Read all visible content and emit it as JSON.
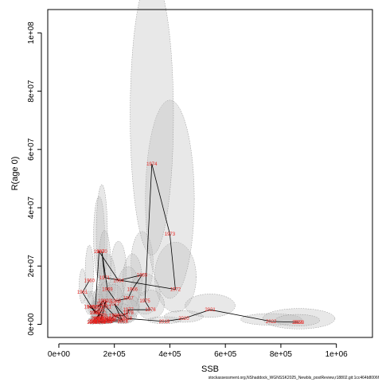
{
  "chart_data": {
    "type": "scatter",
    "xlabel": "SSB",
    "ylabel": "R(age 0)",
    "xlim": [
      -40000,
      1130000
    ],
    "ylim": [
      -4500000,
      108000000
    ],
    "x_ticks": [
      {
        "value": 0,
        "label": "0e+00"
      },
      {
        "value": 200000,
        "label": "2e+05"
      },
      {
        "value": 400000,
        "label": "4e+05"
      },
      {
        "value": 600000,
        "label": "6e+05"
      },
      {
        "value": 800000,
        "label": "8e+05"
      },
      {
        "value": 1000000,
        "label": "1e+06"
      }
    ],
    "y_ticks": [
      {
        "value": 0,
        "label": "0e+00"
      },
      {
        "value": 20000000,
        "label": "2e+07"
      },
      {
        "value": 40000000,
        "label": "4e+07"
      },
      {
        "value": 60000000,
        "label": "6e+07"
      },
      {
        "value": 80000000,
        "label": "8e+07"
      },
      {
        "value": 100000000,
        "label": "1e+08"
      }
    ],
    "grid": false,
    "line_color": "#000000",
    "label_color": "#e8231f",
    "ellipse_fill": "#bdbdbd",
    "points": [
      {
        "year": "1960",
        "x": 110000,
        "y": 15000000,
        "rx": 15000,
        "ry": 9000000
      },
      {
        "year": "1961",
        "x": 85000,
        "y": 11000000,
        "rx": 12000,
        "ry": 6000000
      },
      {
        "year": "1962",
        "x": 130000,
        "y": 4000000,
        "rx": 14000,
        "ry": 3000000
      },
      {
        "year": "1963",
        "x": 145000,
        "y": 25000000,
        "rx": 20000,
        "ry": 14000000
      },
      {
        "year": "1964",
        "x": 215000,
        "y": 15000000,
        "rx": 28000,
        "ry": 10000000
      },
      {
        "year": "1965",
        "x": 300000,
        "y": 17000000,
        "rx": 40000,
        "ry": 11000000
      },
      {
        "year": "1966",
        "x": 265000,
        "y": 12000000,
        "rx": 35000,
        "ry": 9000000
      },
      {
        "year": "1967",
        "x": 250000,
        "y": 9000000,
        "rx": 40000,
        "ry": 8000000
      },
      {
        "year": "1968",
        "x": 205000,
        "y": 8000000,
        "rx": 30000,
        "ry": 6000000
      },
      {
        "year": "1969",
        "x": 175000,
        "y": 12000000,
        "rx": 30000,
        "ry": 9000000
      },
      {
        "year": "1970",
        "x": 155000,
        "y": 25000000,
        "rx": 20000,
        "ry": 17000000
      },
      {
        "year": "1971",
        "x": 165000,
        "y": 16000000,
        "rx": 22000,
        "ry": 12000000
      },
      {
        "year": "1972",
        "x": 420000,
        "y": 12000000,
        "rx": 75000,
        "ry": 12000000
      },
      {
        "year": "1973",
        "x": 400000,
        "y": 31000000,
        "rx": 88000,
        "ry": 34000000
      },
      {
        "year": "1974",
        "x": 335000,
        "y": 55000000,
        "rx": 78000,
        "ry": 48000000
      },
      {
        "year": "1975",
        "x": 310000,
        "y": 8000000,
        "rx": 55000,
        "ry": 7000000
      },
      {
        "year": "1976",
        "x": 330000,
        "y": 5000000,
        "rx": 50000,
        "ry": 5000000
      },
      {
        "year": "1977",
        "x": 250000,
        "y": 5000000,
        "rx": 40000,
        "ry": 4000000
      },
      {
        "year": "1978",
        "x": 250000,
        "y": 4000000,
        "rx": 40000,
        "ry": 3500000
      },
      {
        "year": "1979",
        "x": 230000,
        "y": 3000000,
        "rx": 35000,
        "ry": 3000000
      },
      {
        "year": "1980",
        "x": 200000,
        "y": 3000000,
        "rx": 30000,
        "ry": 3000000
      },
      {
        "year": "1981",
        "x": 170000,
        "y": 6000000,
        "rx": 25000,
        "ry": 4500000
      },
      {
        "year": "1982",
        "x": 160000,
        "y": 8000000,
        "rx": 25000,
        "ry": 5500000
      },
      {
        "year": "1983",
        "x": 140000,
        "y": 6000000,
        "rx": 20000,
        "ry": 4500000
      },
      {
        "year": "1984",
        "x": 155000,
        "y": 7000000,
        "rx": 22000,
        "ry": 5000000
      },
      {
        "year": "1985",
        "x": 145000,
        "y": 5000000,
        "rx": 20000,
        "ry": 4000000
      },
      {
        "year": "1986",
        "x": 130000,
        "y": 4000000,
        "rx": 18000,
        "ry": 3000000
      },
      {
        "year": "1987",
        "x": 120000,
        "y": 6000000,
        "rx": 18000,
        "ry": 4000000
      },
      {
        "year": "1988",
        "x": 110000,
        "y": 6000000,
        "rx": 16000,
        "ry": 4000000
      },
      {
        "year": "1989",
        "x": 155000,
        "y": 3000000,
        "rx": 20000,
        "ry": 2500000
      },
      {
        "year": "1990",
        "x": 150000,
        "y": 2000000,
        "rx": 20000,
        "ry": 2000000
      },
      {
        "year": "1991",
        "x": 145000,
        "y": 2000000,
        "rx": 20000,
        "ry": 1800000
      },
      {
        "year": "1992",
        "x": 160000,
        "y": 1500000,
        "rx": 22000,
        "ry": 1500000
      },
      {
        "year": "1993",
        "x": 170000,
        "y": 1000000,
        "rx": 25000,
        "ry": 1200000
      },
      {
        "year": "1994",
        "x": 180000,
        "y": 1500000,
        "rx": 25000,
        "ry": 1500000
      },
      {
        "year": "1995",
        "x": 170000,
        "y": 2000000,
        "rx": 25000,
        "ry": 1800000
      },
      {
        "year": "1996",
        "x": 185000,
        "y": 1500000,
        "rx": 25000,
        "ry": 1500000
      },
      {
        "year": "1997",
        "x": 190000,
        "y": 2000000,
        "rx": 25000,
        "ry": 1800000
      },
      {
        "year": "1998",
        "x": 200000,
        "y": 3000000,
        "rx": 28000,
        "ry": 2500000
      },
      {
        "year": "1999",
        "x": 230000,
        "y": 1500000,
        "rx": 30000,
        "ry": 1500000
      },
      {
        "year": "2000",
        "x": 190000,
        "y": 1500000,
        "rx": 25000,
        "ry": 1500000
      },
      {
        "year": "2001",
        "x": 175000,
        "y": 1000000,
        "rx": 25000,
        "ry": 1200000
      },
      {
        "year": "2002",
        "x": 150000,
        "y": 700000,
        "rx": 22000,
        "ry": 1000000
      },
      {
        "year": "2003",
        "x": 170000,
        "y": 8000000,
        "rx": 25000,
        "ry": 5000000
      },
      {
        "year": "2004",
        "x": 135000,
        "y": 1000000,
        "rx": 20000,
        "ry": 1200000
      },
      {
        "year": "2005",
        "x": 140000,
        "y": 1500000,
        "rx": 20000,
        "ry": 1500000
      },
      {
        "year": "2006",
        "x": 130000,
        "y": 1000000,
        "rx": 18000,
        "ry": 1200000
      },
      {
        "year": "2007",
        "x": 140000,
        "y": 1800000,
        "rx": 20000,
        "ry": 1500000
      },
      {
        "year": "2008",
        "x": 150000,
        "y": 1000000,
        "rx": 20000,
        "ry": 1200000
      },
      {
        "year": "2009",
        "x": 130000,
        "y": 800000,
        "rx": 18000,
        "ry": 1000000
      },
      {
        "year": "2010",
        "x": 125000,
        "y": 1000000,
        "rx": 18000,
        "ry": 1200000
      },
      {
        "year": "2011",
        "x": 120000,
        "y": 700000,
        "rx": 17000,
        "ry": 1000000
      },
      {
        "year": "2012",
        "x": 150000,
        "y": 4000000,
        "rx": 22000,
        "ry": 3000000
      },
      {
        "year": "2013",
        "x": 135000,
        "y": 2000000,
        "rx": 20000,
        "ry": 1800000
      },
      {
        "year": "2014",
        "x": 150000,
        "y": 1000000,
        "rx": 22000,
        "ry": 1200000
      },
      {
        "year": "2015",
        "x": 175000,
        "y": 1000000,
        "rx": 25000,
        "ry": 1200000
      },
      {
        "year": "2016",
        "x": 230000,
        "y": 1000000,
        "rx": 35000,
        "ry": 1200000
      },
      {
        "year": "2017",
        "x": 200000,
        "y": 7000000,
        "rx": 30000,
        "ry": 5000000
      },
      {
        "year": "2018",
        "x": 245000,
        "y": 2000000,
        "rx": 35000,
        "ry": 2000000
      },
      {
        "year": "2019",
        "x": 380000,
        "y": 1000000,
        "rx": 60000,
        "ry": 1200000
      },
      {
        "year": "2020",
        "x": 450000,
        "y": 2000000,
        "rx": 70000,
        "ry": 2000000
      },
      {
        "year": "2021",
        "x": 545000,
        "y": 5000000,
        "rx": 90000,
        "ry": 4000000
      },
      {
        "year": "2022",
        "x": 765000,
        "y": 1000000,
        "rx": 110000,
        "ry": 2000000
      },
      {
        "year": "2023",
        "x": 865000,
        "y": 700000,
        "rx": 130000,
        "ry": 3500000
      },
      {
        "year": "2024",
        "x": 860000,
        "y": 700000,
        "rx": 80000,
        "ry": 2000000
      }
    ]
  },
  "footer": {
    "source_note": "stockassessment.org,NShaddock_WGNSSK2025_Newbls_postReview,r18802.git:1cc464b8006f"
  }
}
